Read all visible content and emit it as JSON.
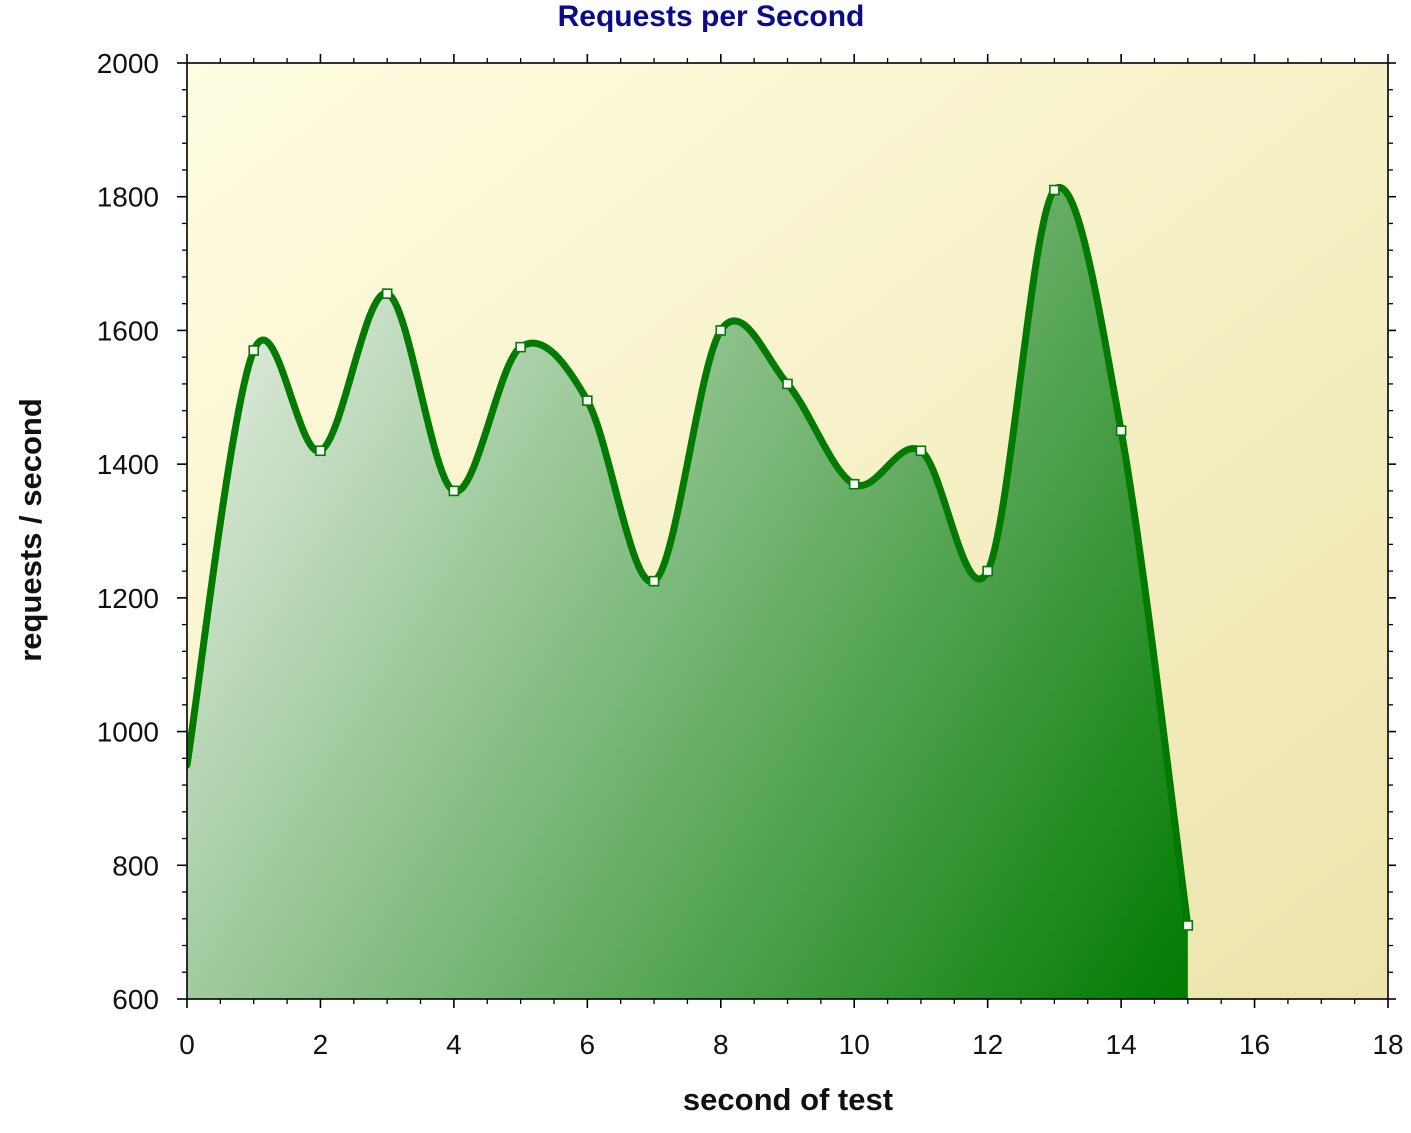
{
  "chart_data": {
    "type": "area",
    "title": "Requests per Second",
    "xlabel": "second of test",
    "ylabel": "requests / second",
    "xlim": [
      0,
      18
    ],
    "ylim": [
      600,
      2000
    ],
    "x_ticks": [
      0,
      2,
      4,
      6,
      8,
      10,
      12,
      14,
      16,
      18
    ],
    "y_ticks": [
      600,
      800,
      1000,
      1200,
      1400,
      1600,
      1800,
      2000
    ],
    "x_tick_labels": [
      "0",
      "2",
      "4",
      "6",
      "8",
      "10",
      "12",
      "14",
      "16",
      "18"
    ],
    "y_tick_labels": [
      "600",
      "800",
      "1000",
      "1200",
      "1400",
      "1600",
      "1800",
      "2000"
    ],
    "grid": false,
    "legend": "none",
    "smooth": true,
    "series": [
      {
        "x": [
          0,
          1,
          2,
          3,
          4,
          5,
          6,
          7,
          8,
          9,
          10,
          11,
          12,
          13,
          14,
          15
        ],
        "y": [
          950,
          1570,
          1420,
          1655,
          1360,
          1575,
          1495,
          1225,
          1600,
          1520,
          1370,
          1420,
          1240,
          1810,
          1450,
          710
        ],
        "color": "#007a00"
      }
    ],
    "colors": {
      "title": "#0a0a8c",
      "line": "#007a00",
      "fill_light": "#dfeadc",
      "fill_dark": "#007a00",
      "plot_bg_light": "#fffde2",
      "plot_bg_dark": "#ede4ab"
    }
  }
}
